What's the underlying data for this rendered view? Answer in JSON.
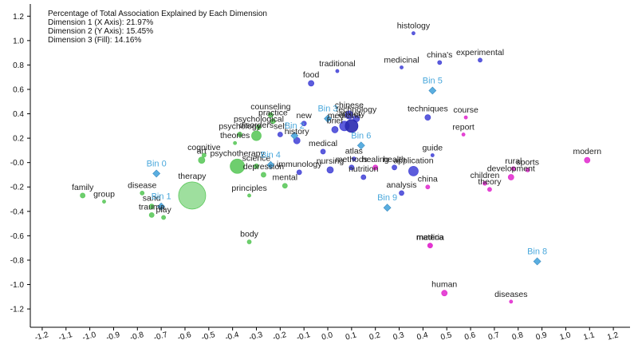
{
  "info": {
    "line1": "Percentage of Total Association Explained by Each Dimension",
    "line2": "Dimension 1 (X Axis): 21.97%",
    "line3": "Dimension 2 (Y Axis): 15.45%",
    "line4": "Dimension 3 (Fill): 14.16%"
  },
  "chart_data": {
    "type": "scatter",
    "xlim": [
      -1.25,
      1.27
    ],
    "ylim": [
      -1.35,
      1.3
    ],
    "xticks": [
      -1.2,
      -1.1,
      -1.0,
      -0.9,
      -0.8,
      -0.7,
      -0.6,
      -0.5,
      -0.4,
      -0.3,
      -0.2,
      -0.1,
      0.0,
      0.1,
      0.2,
      0.3,
      0.4,
      0.5,
      0.6,
      0.7,
      0.8,
      0.9,
      1.0,
      1.1,
      1.2
    ],
    "yticks": [
      1.2,
      1.0,
      0.8,
      0.6,
      0.4,
      0.2,
      0.0,
      -0.2,
      -0.4,
      -0.6,
      -0.8,
      -1.0,
      -1.2
    ],
    "xtick_labels": [
      "-1.2",
      "-1.1",
      "-1.0",
      "-0.9",
      "-0.8",
      "-0.7",
      "-0.6",
      "-0.5",
      "-0.4",
      "-0.3",
      "-0.2",
      "-0.1",
      "0.0",
      "0.1",
      "0.2",
      "0.3",
      "0.4",
      "0.5",
      "0.6",
      "0.7",
      "0.8",
      "0.9",
      "1.0",
      "1.1",
      "1.2"
    ],
    "ytick_labels": [
      "1.2",
      "1.0",
      "0.8",
      "0.6",
      "0.4",
      "0.2",
      "-0.0",
      "-0.2",
      "-0.4",
      "-0.6",
      "-0.8",
      "-1.0",
      "-1.2"
    ],
    "grid": false,
    "colors": {
      "green": "#5ec95e",
      "blue": "#4a4ad8",
      "darkblue": "#2a2ab0",
      "magenta": "#e233d0",
      "bin": "#5aaee0",
      "label": "#222222",
      "binlabel": "#4aa8dc"
    },
    "terms": [
      {
        "label": "histology",
        "x": 0.36,
        "y": 1.06,
        "r": 2,
        "color": "blue"
      },
      {
        "label": "experimental",
        "x": 0.64,
        "y": 0.84,
        "r": 2.5,
        "color": "blue"
      },
      {
        "label": "china's",
        "x": 0.47,
        "y": 0.82,
        "r": 2.5,
        "color": "blue"
      },
      {
        "label": "medicinal",
        "x": 0.31,
        "y": 0.78,
        "r": 2,
        "color": "blue"
      },
      {
        "label": "traditional",
        "x": 0.04,
        "y": 0.75,
        "r": 2,
        "color": "blue"
      },
      {
        "label": "food",
        "x": -0.07,
        "y": 0.65,
        "r": 3.5,
        "color": "blue"
      },
      {
        "label": "techniques",
        "x": 0.42,
        "y": 0.37,
        "r": 3.5,
        "color": "blue"
      },
      {
        "label": "course",
        "x": 0.58,
        "y": 0.37,
        "r": 2,
        "color": "magenta"
      },
      {
        "label": "report",
        "x": 0.57,
        "y": 0.23,
        "r": 2,
        "color": "magenta"
      },
      {
        "label": "counseling",
        "x": -0.24,
        "y": 0.39,
        "r": 3,
        "color": "green"
      },
      {
        "label": "practice",
        "x": -0.23,
        "y": 0.34,
        "r": 3,
        "color": "green"
      },
      {
        "label": "new",
        "x": -0.1,
        "y": 0.32,
        "r": 3,
        "color": "blue"
      },
      {
        "label": "chinese",
        "x": 0.09,
        "y": 0.39,
        "r": 5,
        "color": "blue"
      },
      {
        "label": "technology",
        "x": 0.12,
        "y": 0.36,
        "r": 4,
        "color": "blue"
      },
      {
        "label": "medicine",
        "x": 0.07,
        "y": 0.3,
        "r": 6,
        "color": "blue"
      },
      {
        "label": "brief",
        "x": 0.03,
        "y": 0.27,
        "r": 4,
        "color": "blue"
      },
      {
        "label": "anxiety",
        "x": 0.1,
        "y": 0.3,
        "r": 8,
        "color": "darkblue"
      },
      {
        "label": "psychological",
        "x": -0.29,
        "y": 0.29,
        "r": 3,
        "color": "green"
      },
      {
        "label": "self",
        "x": -0.2,
        "y": 0.23,
        "r": 3,
        "color": "blue"
      },
      {
        "label": "psychology",
        "x": -0.37,
        "y": 0.23,
        "r": 3,
        "color": "green"
      },
      {
        "label": "disorders",
        "x": -0.3,
        "y": 0.22,
        "r": 6,
        "color": "green"
      },
      {
        "label": "theories",
        "x": -0.39,
        "y": 0.16,
        "r": 2,
        "color": "green"
      },
      {
        "label": "history",
        "x": -0.13,
        "y": 0.18,
        "r": 4,
        "color": "blue"
      },
      {
        "label": "guide",
        "x": 0.44,
        "y": 0.06,
        "r": 2,
        "color": "blue"
      },
      {
        "label": "medical",
        "x": -0.02,
        "y": 0.09,
        "r": 3,
        "color": "blue"
      },
      {
        "label": "atlas",
        "x": 0.11,
        "y": 0.03,
        "r": 2.5,
        "color": "blue"
      },
      {
        "label": "healing",
        "x": 0.2,
        "y": -0.04,
        "r": 3,
        "color": "magenta"
      },
      {
        "label": "health",
        "x": 0.28,
        "y": -0.04,
        "r": 3,
        "color": "blue"
      },
      {
        "label": "cognitive",
        "x": -0.52,
        "y": 0.06,
        "r": 2.5,
        "color": "green"
      },
      {
        "label": "art",
        "x": -0.53,
        "y": 0.02,
        "r": 4,
        "color": "green"
      },
      {
        "label": "psychotherapy",
        "x": -0.38,
        "y": -0.03,
        "r": 9,
        "color": "green"
      },
      {
        "label": "science",
        "x": -0.3,
        "y": -0.03,
        "r": 3,
        "color": "green"
      },
      {
        "label": "immunology",
        "x": -0.12,
        "y": -0.08,
        "r": 3,
        "color": "blue"
      },
      {
        "label": "nursing",
        "x": 0.01,
        "y": -0.06,
        "r": 4,
        "color": "blue"
      },
      {
        "label": "methods",
        "x": 0.1,
        "y": -0.04,
        "r": 3,
        "color": "blue"
      },
      {
        "label": "nutrition",
        "x": 0.15,
        "y": -0.12,
        "r": 3,
        "color": "blue"
      },
      {
        "label": "application",
        "x": 0.36,
        "y": -0.07,
        "r": 6,
        "color": "blue"
      },
      {
        "label": "depression",
        "x": -0.27,
        "y": -0.1,
        "r": 3,
        "color": "green"
      },
      {
        "label": "mental",
        "x": -0.18,
        "y": -0.19,
        "r": 3,
        "color": "green"
      },
      {
        "label": "analysis",
        "x": 0.31,
        "y": -0.25,
        "r": 3,
        "color": "blue"
      },
      {
        "label": "china",
        "x": 0.42,
        "y": -0.2,
        "r": 2.5,
        "color": "magenta"
      },
      {
        "label": "rural",
        "x": 0.78,
        "y": -0.05,
        "r": 2.5,
        "color": "magenta"
      },
      {
        "label": "sports",
        "x": 0.84,
        "y": -0.06,
        "r": 2.5,
        "color": "magenta"
      },
      {
        "label": "modern",
        "x": 1.09,
        "y": 0.02,
        "r": 3.5,
        "color": "magenta"
      },
      {
        "label": "development",
        "x": 0.77,
        "y": -0.12,
        "r": 3.5,
        "color": "magenta"
      },
      {
        "label": "children",
        "x": 0.66,
        "y": -0.17,
        "r": 2.5,
        "color": "magenta"
      },
      {
        "label": "theory",
        "x": 0.68,
        "y": -0.22,
        "r": 2.5,
        "color": "magenta"
      },
      {
        "label": "disease",
        "x": -0.78,
        "y": -0.25,
        "r": 2.5,
        "color": "green"
      },
      {
        "label": "family",
        "x": -1.03,
        "y": -0.27,
        "r": 3,
        "color": "green"
      },
      {
        "label": "group",
        "x": -0.94,
        "y": -0.32,
        "r": 2,
        "color": "green"
      },
      {
        "label": "therapy",
        "x": -0.57,
        "y": -0.27,
        "r": 17,
        "color": "green"
      },
      {
        "label": "principles",
        "x": -0.33,
        "y": -0.27,
        "r": 2,
        "color": "green"
      },
      {
        "label": "trauma",
        "x": -0.74,
        "y": -0.43,
        "r": 3,
        "color": "green"
      },
      {
        "label": "sand",
        "x": -0.74,
        "y": -0.36,
        "r": 3,
        "color": "green"
      },
      {
        "label": "play",
        "x": -0.69,
        "y": -0.45,
        "r": 2.5,
        "color": "green"
      },
      {
        "label": "body",
        "x": -0.33,
        "y": -0.65,
        "r": 2.5,
        "color": "green"
      },
      {
        "label": "materia",
        "x": 0.43,
        "y": -0.68,
        "r": 3,
        "color": "magenta"
      },
      {
        "label": "medica",
        "x": 0.43,
        "y": -0.68,
        "r": 3,
        "color": "magenta"
      },
      {
        "label": "human",
        "x": 0.49,
        "y": -1.07,
        "r": 3.5,
        "color": "magenta"
      },
      {
        "label": "diseases",
        "x": 0.77,
        "y": -1.14,
        "r": 2,
        "color": "magenta"
      }
    ],
    "bins": [
      {
        "label": "Bin 0",
        "x": -0.72,
        "y": -0.09
      },
      {
        "label": "Bin 1",
        "x": -0.7,
        "y": -0.36
      },
      {
        "label": "Bin 2",
        "x": -0.14,
        "y": 0.22
      },
      {
        "label": "Bin 3",
        "x": 0.0,
        "y": 0.36
      },
      {
        "label": "Bin 4",
        "x": -0.24,
        "y": -0.02
      },
      {
        "label": "Bin 5",
        "x": 0.44,
        "y": 0.59
      },
      {
        "label": "Bin 6",
        "x": 0.14,
        "y": 0.14
      },
      {
        "label": "Bin 8",
        "x": 0.88,
        "y": -0.81
      },
      {
        "label": "Bin 9",
        "x": 0.25,
        "y": -0.37
      }
    ]
  }
}
